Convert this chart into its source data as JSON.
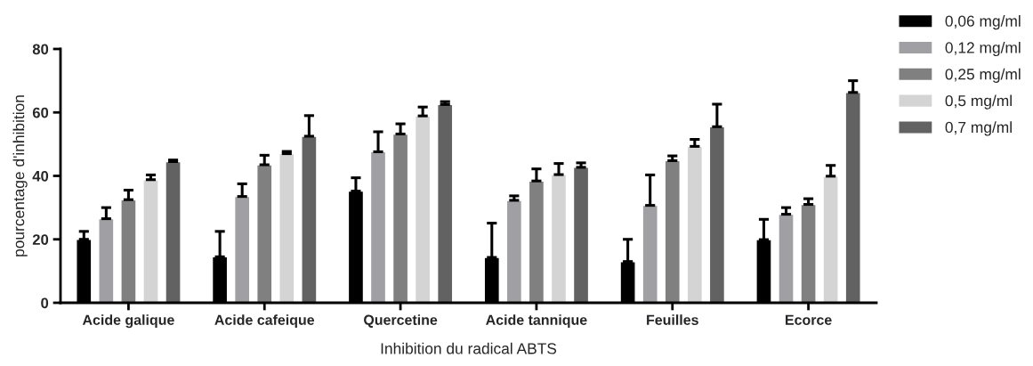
{
  "chart_data": {
    "type": "bar",
    "xlabel": "Inhibition du radical ABTS",
    "ylabel": "pourcentage d'inhibition",
    "categories": [
      "Acide galique",
      "Acide cafeique",
      "Quercetine",
      "Acide tannique",
      "Feuilles",
      "Ecorce"
    ],
    "series": [
      {
        "name": "0,06 mg/ml",
        "color": "#000000",
        "values": [
          20,
          14.5,
          35.2,
          14.3,
          13.0,
          19.9
        ],
        "errors": [
          [
            20,
            22.5
          ],
          [
            14.5,
            22.5
          ],
          [
            35.2,
            39.4
          ],
          [
            14.3,
            25.1
          ],
          [
            13.0,
            20.0
          ],
          [
            19.9,
            26.3
          ]
        ]
      },
      {
        "name": "0,12 mg/ml",
        "color": "#a0a0a4",
        "values": [
          26.5,
          33.5,
          47.6,
          32.3,
          30.7,
          27.9
        ],
        "errors": [
          [
            26.5,
            30
          ],
          [
            33.5,
            37.5
          ],
          [
            47.6,
            53.9
          ],
          [
            32.3,
            33.7
          ],
          [
            30.7,
            40.3
          ],
          [
            27.9,
            30.0
          ]
        ]
      },
      {
        "name": "0,25 mg/ml",
        "color": "#808080",
        "values": [
          32.5,
          43.5,
          53.2,
          38.4,
          44.8,
          31.0
        ],
        "errors": [
          [
            32.5,
            35.5
          ],
          [
            43.5,
            46.5
          ],
          [
            53.2,
            56.4
          ],
          [
            38.4,
            42.2
          ],
          [
            44.8,
            46.3
          ],
          [
            31.0,
            32.8
          ]
        ]
      },
      {
        "name": "0,5 mg/ml",
        "color": "#d4d4d4",
        "values": [
          38.8,
          47,
          58.9,
          40.4,
          49.3,
          39.9
        ],
        "errors": [
          [
            38.8,
            40.3
          ],
          [
            47,
            47.7
          ],
          [
            58.9,
            61.7
          ],
          [
            40.4,
            43.9
          ],
          [
            49.3,
            51.5
          ],
          [
            39.9,
            43.3
          ]
        ]
      },
      {
        "name": "0,7 mg/ml",
        "color": "#626262",
        "values": [
          44.5,
          52.5,
          62.5,
          42.7,
          55.5,
          66.3
        ],
        "errors": [
          [
            44.5,
            45
          ],
          [
            52.5,
            59
          ],
          [
            62.5,
            63.4
          ],
          [
            42.7,
            44.1
          ],
          [
            55.5,
            62.6
          ],
          [
            66.3,
            70.0
          ]
        ]
      }
    ],
    "ylim": [
      0,
      80
    ],
    "yticks": [
      0,
      20,
      40,
      60,
      80
    ],
    "grid": false,
    "legend": "top right"
  }
}
